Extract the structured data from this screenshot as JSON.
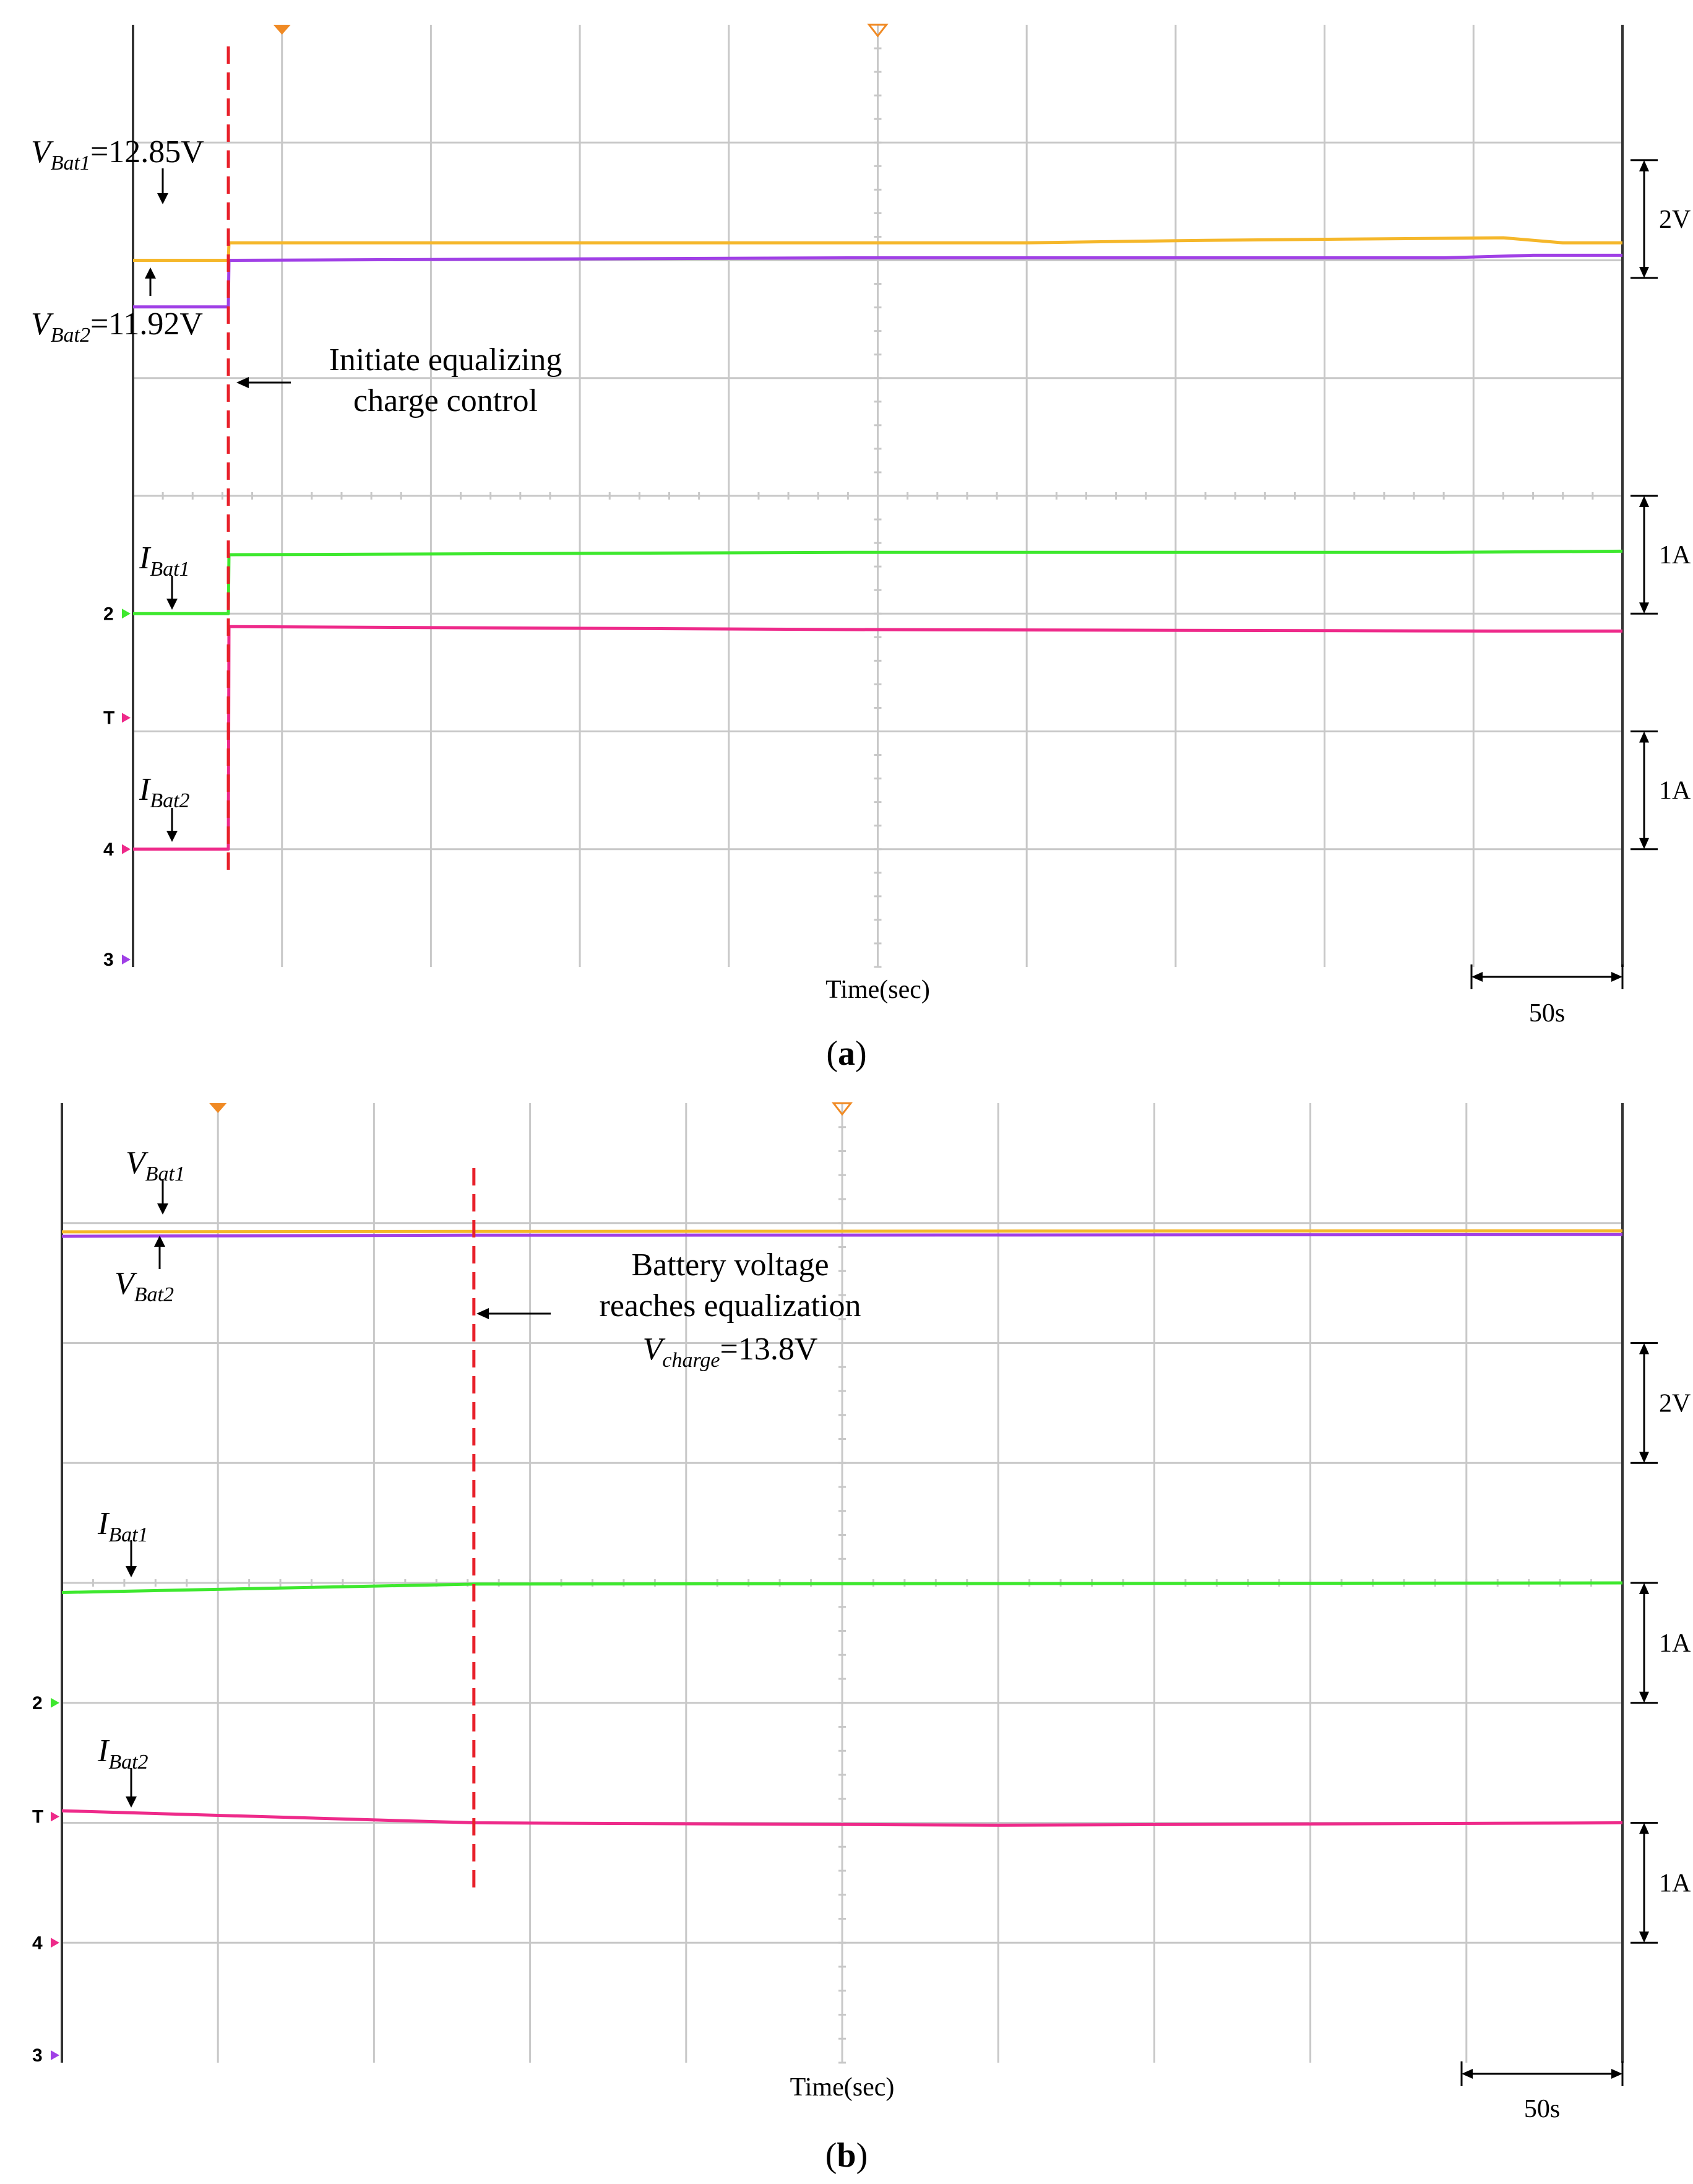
{
  "chart_data": [
    {
      "type": "line",
      "caption_letter": "a",
      "caption_open": "(",
      "caption_close": ")",
      "xlabel": "Time(sec)",
      "time_scale": "50s",
      "voltage_scale": "2V",
      "current_scale_1": "1A",
      "current_scale_2": "1A",
      "event_time_s": 16,
      "annotations": {
        "v1_name": "V",
        "v1_sub": "Bat1",
        "v1_value": "=12.85V",
        "v2_name": "V",
        "v2_sub": "Bat2",
        "v2_value": "=11.92V",
        "i1_name": "I",
        "i1_sub": "Bat1",
        "i2_name": "I",
        "i2_sub": "Bat2",
        "event_line1": "Initiate equalizing",
        "event_line2": "charge control"
      },
      "channel_markers": {
        "ch2": "2",
        "trigger": "T",
        "ch4": "4",
        "ch3": "3"
      },
      "series": [
        {
          "name": "V_Bat1",
          "color": "#f5b72a",
          "unit": "V",
          "x": [
            0,
            16,
            16.1,
            150,
            180,
            230,
            240,
            250
          ],
          "y": [
            12.85,
            12.85,
            13.2,
            13.2,
            13.25,
            13.3,
            13.2,
            13.2
          ]
        },
        {
          "name": "V_Bat2",
          "color": "#a040e6",
          "unit": "V",
          "x": [
            0,
            16,
            16.1,
            120,
            220,
            235,
            250
          ],
          "y": [
            11.92,
            11.92,
            12.85,
            12.9,
            12.9,
            12.95,
            12.95
          ]
        },
        {
          "name": "I_Bat1",
          "color": "#3ee82e",
          "unit": "A",
          "x": [
            0,
            16,
            16.1,
            120,
            220,
            250
          ],
          "y": [
            0,
            0,
            0.5,
            0.52,
            0.52,
            0.53
          ]
        },
        {
          "name": "I_Bat2",
          "color": "#ee2a8a",
          "unit": "A",
          "x": [
            0,
            16,
            16.1,
            120,
            230,
            250
          ],
          "y": [
            0,
            0,
            1.5,
            1.48,
            1.47,
            1.47
          ]
        }
      ]
    },
    {
      "type": "line",
      "caption_letter": "b",
      "caption_open": "(",
      "caption_close": ")",
      "xlabel": "Time(sec)",
      "time_scale": "50s",
      "voltage_scale": "2V",
      "current_scale_1": "1A",
      "current_scale_2": "1A",
      "event_time_s": 66,
      "annotations": {
        "v1_name": "V",
        "v1_sub": "Bat1",
        "v2_name": "V",
        "v2_sub": "Bat2",
        "i1_name": "I",
        "i1_sub": "Bat1",
        "i2_name": "I",
        "i2_sub": "Bat2",
        "event_line1": "Battery voltage",
        "event_line2": "reaches equalization",
        "event_line3_name": "V",
        "event_line3_sub": "charge",
        "event_line3_value": "=13.8V"
      },
      "channel_markers": {
        "ch2": "2",
        "trigger": "T",
        "ch4": "4",
        "ch3": "3"
      },
      "series": [
        {
          "name": "V_Bat1",
          "color": "#f5b72a",
          "unit": "V",
          "x": [
            0,
            66,
            150,
            250
          ],
          "y": [
            13.75,
            13.8,
            13.85,
            13.9
          ]
        },
        {
          "name": "V_Bat2",
          "color": "#a040e6",
          "unit": "V",
          "x": [
            0,
            66,
            150,
            250
          ],
          "y": [
            13.6,
            13.75,
            13.78,
            13.85
          ]
        },
        {
          "name": "I_Bat1",
          "color": "#3ee82e",
          "unit": "A",
          "x": [
            0,
            66,
            250
          ],
          "y": [
            0.92,
            0.99,
            1.0
          ]
        },
        {
          "name": "I_Bat2",
          "color": "#ee2a8a",
          "unit": "A",
          "x": [
            0,
            66,
            150,
            250
          ],
          "y": [
            1.1,
            1.0,
            0.98,
            1.0
          ]
        }
      ]
    }
  ]
}
